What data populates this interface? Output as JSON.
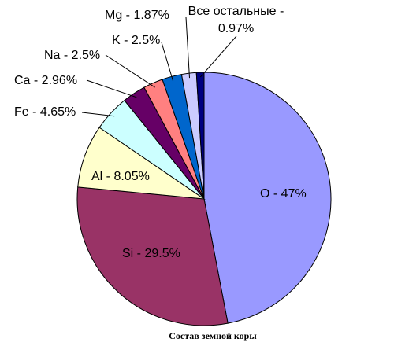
{
  "chart_data": {
    "type": "pie",
    "title": "Состав земной коры",
    "values": [
      47,
      29.5,
      8.05,
      4.65,
      2.96,
      2.5,
      2.5,
      1.87,
      0.97
    ],
    "value_labels": [
      "O - 47%",
      "Si - 29.5%",
      "Al - 8.05%",
      "Fe - 4.65%",
      "Ca - 2.96%",
      "Na - 2.5%",
      "K - 2.5%",
      "Mg - 1.87%",
      "Все остальные - 0.97%"
    ],
    "colors": [
      "#9999ff",
      "#993366",
      "#ffffcc",
      "#ccffff",
      "#660066",
      "#ff8080",
      "#0066cc",
      "#ccccff",
      "#000080"
    ]
  }
}
